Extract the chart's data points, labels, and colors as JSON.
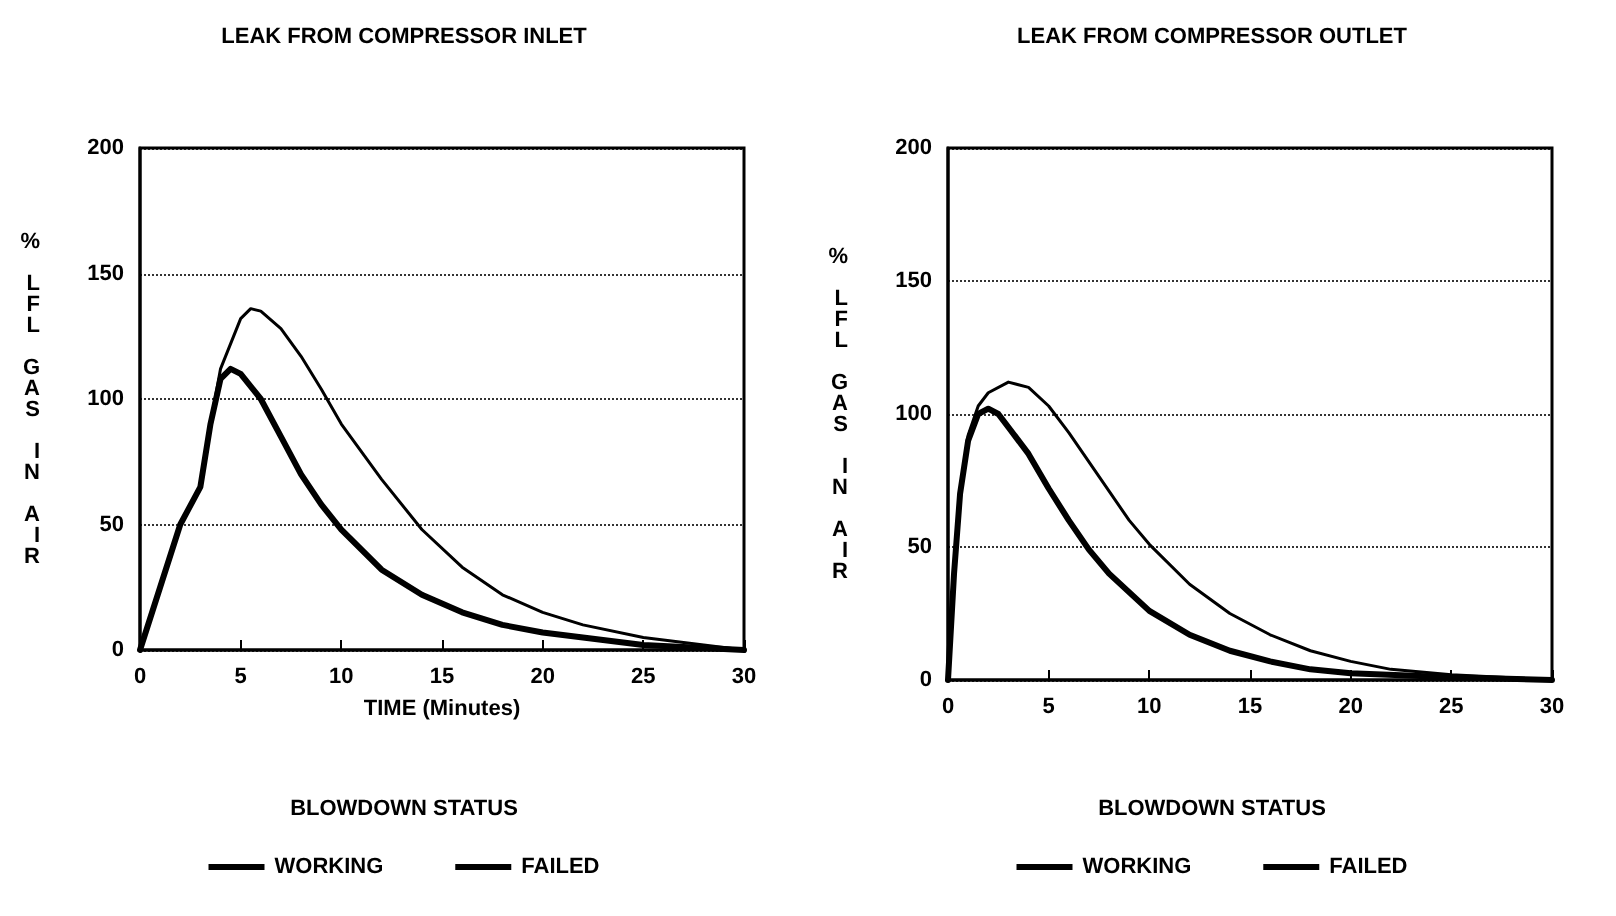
{
  "chart_data": [
    {
      "type": "line",
      "title": "LEAK FROM COMPRESSOR INLET",
      "xlabel": "TIME (Minutes)",
      "ylabel": "% LFL GAS IN AIR",
      "legend_title": "BLOWDOWN STATUS",
      "legend": "bottom",
      "grid": "y",
      "marker": "none",
      "line_style": "solid",
      "xlim": [
        0,
        30
      ],
      "xticks": [
        0,
        5,
        10,
        15,
        20,
        25,
        30
      ],
      "ylim": [
        0,
        200
      ],
      "yticks": [
        0,
        50,
        100,
        150,
        200
      ],
      "series": [
        {
          "name": "WORKING",
          "color": "#000000",
          "x": [
            0,
            1,
            2,
            3,
            3.5,
            4,
            4.5,
            5,
            6,
            7,
            8,
            9,
            10,
            12,
            14,
            16,
            18,
            20,
            22,
            25,
            30
          ],
          "values": [
            0,
            25,
            50,
            65,
            90,
            108,
            112,
            110,
            100,
            85,
            70,
            58,
            48,
            32,
            22,
            15,
            10,
            7,
            5,
            2,
            0
          ]
        },
        {
          "name": "FAILED",
          "color": "#000000",
          "x": [
            0,
            1,
            2,
            3,
            3.5,
            4,
            5,
            5.5,
            6,
            7,
            8,
            9,
            10,
            12,
            14,
            16,
            18,
            20,
            22,
            25,
            28,
            30
          ],
          "values": [
            0,
            25,
            50,
            65,
            90,
            112,
            132,
            136,
            135,
            128,
            117,
            104,
            90,
            68,
            48,
            33,
            22,
            15,
            10,
            5,
            2,
            0
          ]
        }
      ]
    },
    {
      "type": "line",
      "title": "LEAK FROM COMPRESSOR OUTLET",
      "ylabel": "% LFL GAS IN AIR",
      "legend_title": "BLOWDOWN STATUS",
      "legend": "bottom",
      "grid": "y",
      "marker": "none",
      "line_style": "solid",
      "xlim": [
        0,
        30
      ],
      "xticks": [
        0,
        5,
        10,
        15,
        20,
        25,
        30
      ],
      "ylim": [
        0,
        200
      ],
      "yticks": [
        0,
        50,
        100,
        150,
        200
      ],
      "series": [
        {
          "name": "WORKING",
          "color": "#000000",
          "x": [
            0,
            0.3,
            0.6,
            1,
            1.5,
            2,
            2.5,
            3,
            4,
            5,
            6,
            7,
            8,
            10,
            12,
            14,
            16,
            18,
            20,
            25,
            30
          ],
          "values": [
            0,
            40,
            70,
            90,
            100,
            102,
            100,
            95,
            85,
            72,
            60,
            49,
            40,
            26,
            17,
            11,
            7,
            4,
            2.5,
            1,
            0
          ]
        },
        {
          "name": "FAILED",
          "color": "#000000",
          "x": [
            0,
            0.3,
            0.6,
            1,
            1.5,
            2,
            3,
            4,
            5,
            6,
            7,
            8,
            9,
            10,
            12,
            14,
            16,
            18,
            20,
            22,
            25,
            30
          ],
          "values": [
            0,
            40,
            70,
            92,
            103,
            108,
            112,
            110,
            103,
            93,
            82,
            71,
            60,
            51,
            36,
            25,
            17,
            11,
            7,
            4,
            2,
            0
          ]
        }
      ]
    }
  ]
}
